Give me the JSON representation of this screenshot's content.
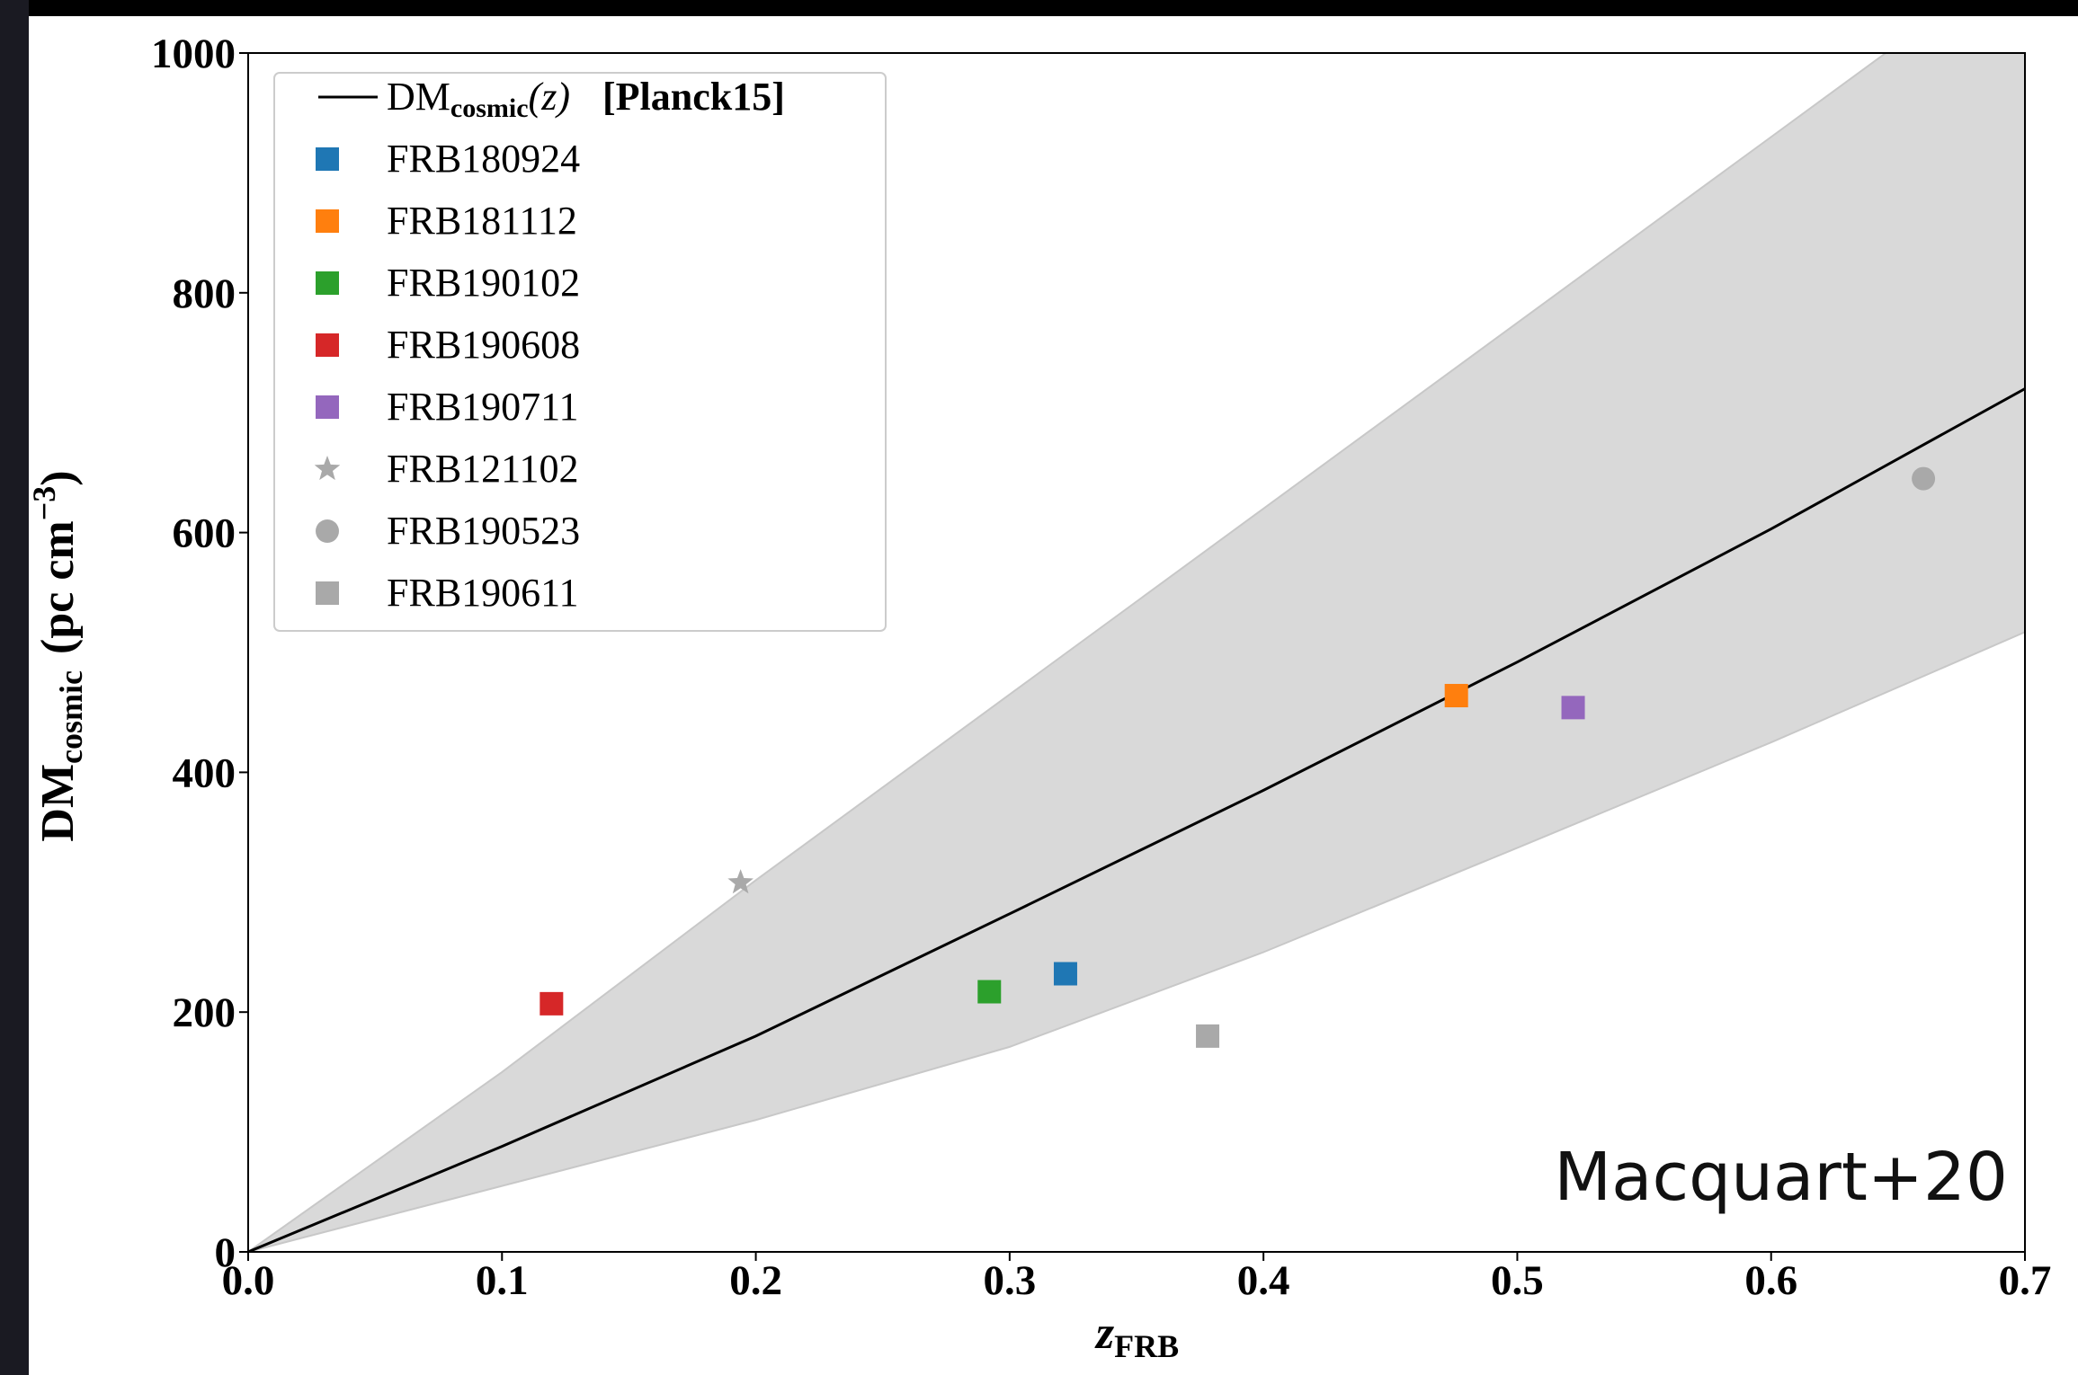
{
  "chart_data": {
    "type": "scatter",
    "xlim": [
      0,
      0.7
    ],
    "ylim": [
      0,
      1000
    ],
    "xticks": [
      {
        "value": 0,
        "label": "0.0"
      },
      0.1,
      0.2,
      0.3,
      0.4,
      0.5,
      0.6,
      0.7
    ],
    "yticks": [
      0,
      200,
      400,
      600,
      800,
      1000
    ],
    "x_label": {
      "main": "z",
      "sub": "FRB"
    },
    "y_label": {
      "main": "DM",
      "sub": "cosmic",
      "unit": "(pc cm",
      "sup": "−3",
      "close": ")"
    },
    "annotation": "Macquart+20",
    "legend": "upper left",
    "model": {
      "label_main": "DM",
      "label_sub": "cosmic",
      "label_arg": "(z)",
      "label_tag": "[Planck15]",
      "color": "#000000",
      "x": [
        0,
        0.1,
        0.2,
        0.3,
        0.4,
        0.5,
        0.6,
        0.7
      ],
      "values": [
        0,
        88,
        180,
        282,
        385,
        492,
        603,
        720
      ]
    },
    "band": {
      "color": "#d9d9d9",
      "x": [
        0,
        0.1,
        0.2,
        0.3,
        0.4,
        0.5,
        0.6,
        0.7
      ],
      "lower": [
        0,
        55,
        110,
        171,
        250,
        337,
        425,
        517
      ],
      "upper": [
        0,
        150,
        310,
        465,
        620,
        775,
        930,
        1085
      ]
    },
    "series": [
      {
        "name": "FRB180924",
        "color": "#1f77b4",
        "marker": "square",
        "x": [
          0.322
        ],
        "values": [
          232
        ]
      },
      {
        "name": "FRB181112",
        "color": "#ff7f0e",
        "marker": "square",
        "x": [
          0.476
        ],
        "values": [
          464
        ]
      },
      {
        "name": "FRB190102",
        "color": "#2ca02c",
        "marker": "square",
        "x": [
          0.292
        ],
        "values": [
          217
        ]
      },
      {
        "name": "FRB190608",
        "color": "#d62728",
        "marker": "square",
        "x": [
          0.1195
        ],
        "values": [
          207
        ]
      },
      {
        "name": "FRB190711",
        "color": "#9467bd",
        "marker": "square",
        "x": [
          0.522
        ],
        "values": [
          454
        ]
      },
      {
        "name": "FRB121102",
        "color": "#a9a9a9",
        "marker": "star",
        "x": [
          0.194
        ],
        "values": [
          308
        ]
      },
      {
        "name": "FRB190523",
        "color": "#a9a9a9",
        "marker": "circle",
        "x": [
          0.66
        ],
        "values": [
          645
        ]
      },
      {
        "name": "FRB190611",
        "color": "#a9a9a9",
        "marker": "square",
        "x": [
          0.378
        ],
        "values": [
          180
        ]
      }
    ]
  }
}
